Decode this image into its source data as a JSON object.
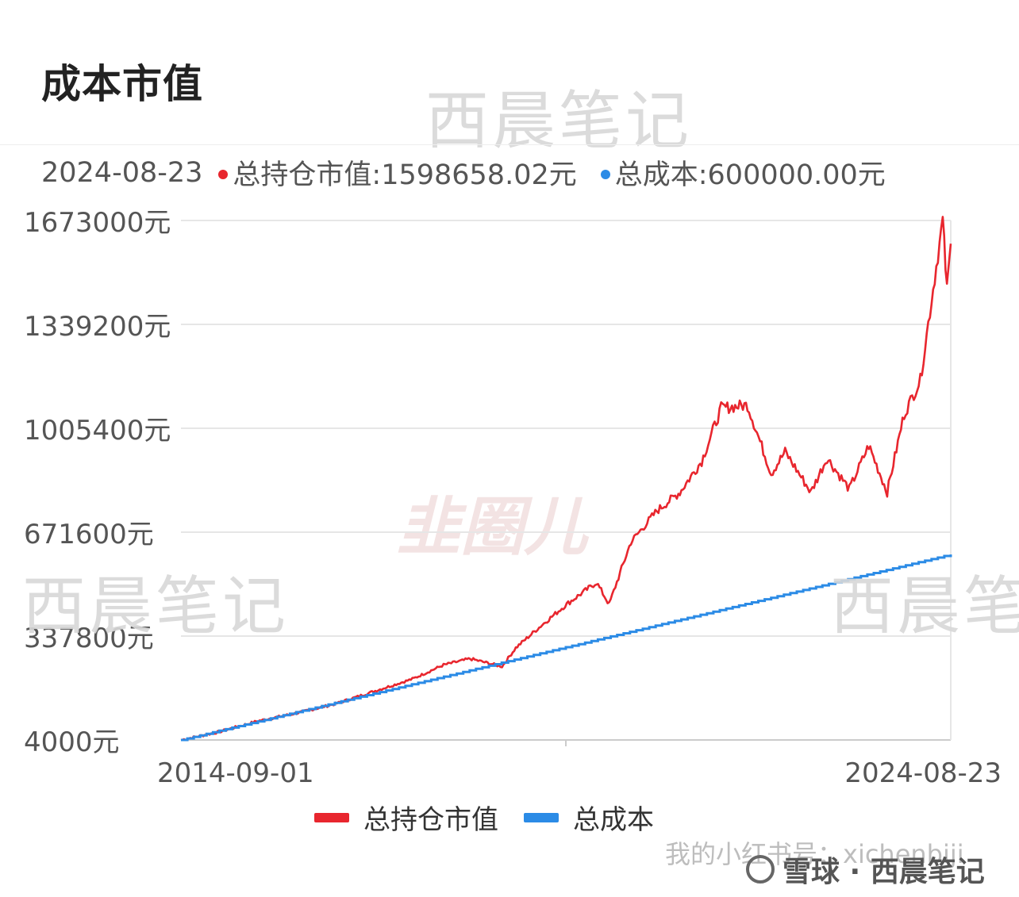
{
  "page": {
    "title": "成本市值"
  },
  "info_bar": {
    "date": "2024-08-23",
    "market_value_label": "总持仓市值:1598658.02元",
    "cost_label": "总成本:600000.00元"
  },
  "watermarks": {
    "brand_text": "西晨笔记",
    "logo_text": "韭圈儿",
    "footer_text": "我的小红书号：xichenbiji",
    "credit_text": "雪球 · 西晨笔记"
  },
  "colors": {
    "market_value": "#e8262e",
    "cost": "#2b8be6",
    "grid": "#e6e6e6",
    "axis": "#cccccc",
    "tick_text": "#555555"
  },
  "chart_data": {
    "type": "line",
    "x_axis": {
      "type": "date",
      "min": "2014-09-01",
      "max": "2024-08-23",
      "tick_labels": [
        "2014-09-01",
        "2024-08-23"
      ]
    },
    "y_axis": {
      "min": 4000,
      "max": 1673000,
      "ticks": [
        4000,
        337800,
        671600,
        1005400,
        1339200,
        1673000
      ],
      "tick_labels": [
        "4000元",
        "337800元",
        "671600元",
        "1005400元",
        "1339200元",
        "1673000元"
      ]
    },
    "grid": true,
    "legend_position": "bottom-center",
    "series": [
      {
        "name": "总持仓市值",
        "x": [
          "2014-09-01",
          "2015-03-01",
          "2015-09-01",
          "2016-03-01",
          "2016-09-01",
          "2017-03-01",
          "2017-09-01",
          "2018-01-26",
          "2018-06-01",
          "2018-10-30",
          "2019-01-03",
          "2019-05-01",
          "2019-09-01",
          "2020-01-20",
          "2020-03-20",
          "2020-07-01",
          "2020-11-01",
          "2021-02-18",
          "2021-06-01",
          "2021-09-01",
          "2022-01-04",
          "2022-04-26",
          "2022-07-01",
          "2022-10-31",
          "2023-01-15",
          "2023-05-01",
          "2023-08-01",
          "2023-10-27",
          "2024-01-15",
          "2024-04-01",
          "2024-07-16",
          "2024-08-05",
          "2024-08-23"
        ],
        "values": [
          4000,
          30000,
          65000,
          90000,
          120000,
          160000,
          200000,
          245000,
          265000,
          240000,
          300000,
          370000,
          440000,
          510000,
          440000,
          640000,
          740000,
          800000,
          900000,
          1070000,
          1080000,
          860000,
          930000,
          800000,
          910000,
          810000,
          950000,
          800000,
          1050000,
          1160000,
          1673000,
          1450000,
          1598658
        ]
      },
      {
        "name": "总成本",
        "x": [
          "2014-09-01",
          "2024-08-23"
        ],
        "values": [
          4000,
          600000
        ]
      }
    ]
  }
}
